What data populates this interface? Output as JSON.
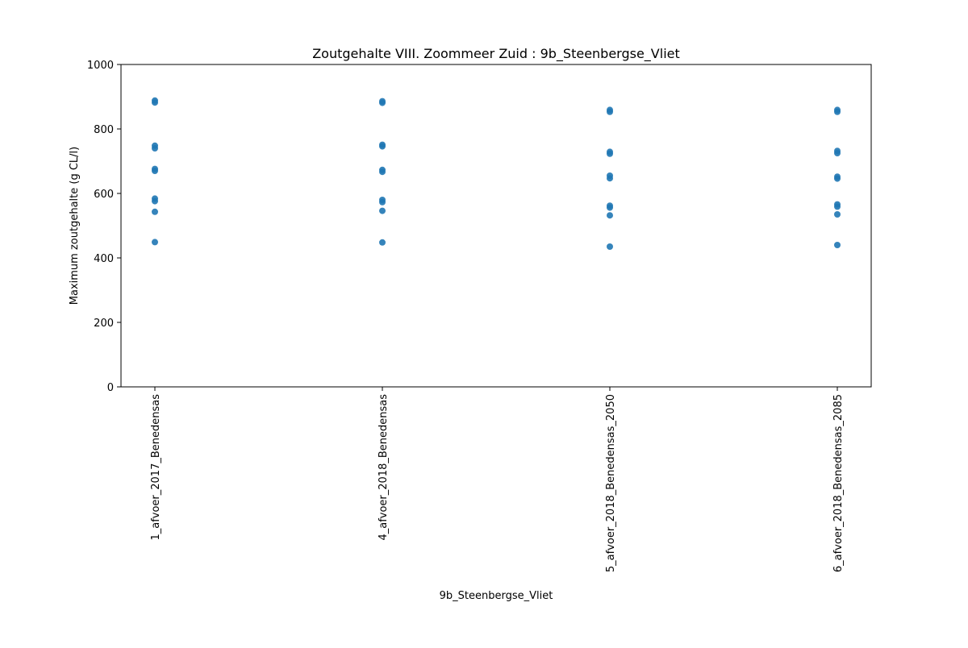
{
  "chart_data": {
    "type": "scatter",
    "title": "Zoutgehalte VIII. Zoommeer Zuid : 9b_Steenbergse_Vliet",
    "xlabel": "9b_Steenbergse_Vliet",
    "ylabel": "Maximum zoutgehalte (g CL/l)",
    "ylim": [
      0,
      1000
    ],
    "yticks": [
      "0",
      "200",
      "400",
      "600",
      "800",
      "1000"
    ],
    "categories": [
      "1_afvoer_2017_Benedensas",
      "4_afvoer_2018_Benedensas",
      "5_afvoer_2018_Benedensas_2050",
      "6_afvoer_2018_Benedensas_2085"
    ],
    "series": [
      {
        "color": "#1f77b4",
        "points": [
          [
            0,
            449
          ],
          [
            0,
            543
          ],
          [
            0,
            576
          ],
          [
            0,
            584
          ],
          [
            0,
            670
          ],
          [
            0,
            676
          ],
          [
            0,
            740
          ],
          [
            0,
            748
          ],
          [
            0,
            882
          ],
          [
            0,
            888
          ],
          [
            1,
            448
          ],
          [
            1,
            546
          ],
          [
            1,
            573
          ],
          [
            1,
            580
          ],
          [
            1,
            667
          ],
          [
            1,
            673
          ],
          [
            1,
            746
          ],
          [
            1,
            751
          ],
          [
            1,
            881
          ],
          [
            1,
            886
          ],
          [
            2,
            435
          ],
          [
            2,
            532
          ],
          [
            2,
            556
          ],
          [
            2,
            562
          ],
          [
            2,
            647
          ],
          [
            2,
            655
          ],
          [
            2,
            723
          ],
          [
            2,
            729
          ],
          [
            2,
            853
          ],
          [
            2,
            859
          ],
          [
            3,
            440
          ],
          [
            3,
            535
          ],
          [
            3,
            559
          ],
          [
            3,
            566
          ],
          [
            3,
            646
          ],
          [
            3,
            652
          ],
          [
            3,
            725
          ],
          [
            3,
            732
          ],
          [
            3,
            853
          ],
          [
            3,
            859
          ]
        ]
      }
    ],
    "grid": false,
    "legend": "none"
  }
}
